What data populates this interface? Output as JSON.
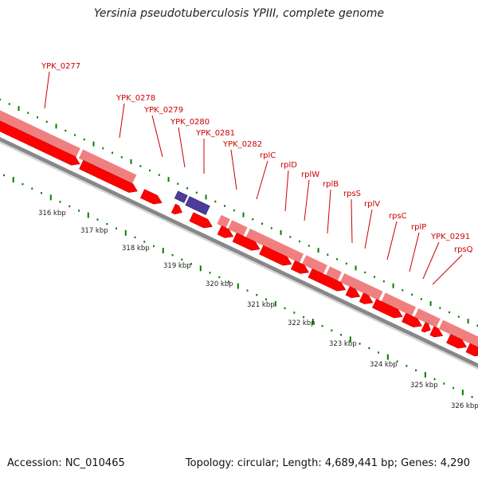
{
  "title": "Yersinia pseudotuberculosis YPIII, complete genome",
  "footer": {
    "accession": "Accession: NC_010465",
    "summary": "Topology: circular; Length: 4,689,441 bp; Genes: 4,290"
  },
  "colors": {
    "cds_forward": "#ff0000",
    "gene_band": "#f08080",
    "rna": "#4b3d99",
    "label": "#cc0000",
    "tick": "#008000",
    "backbone": "#888888"
  },
  "scale_labels": [
    "316 kbp",
    "317 kbp",
    "318 kbp",
    "319 kbp",
    "320 kbp",
    "321 kbp",
    "322 kbp",
    "323 kbp",
    "324 kbp",
    "325 kbp",
    "326 kbp"
  ],
  "gene_labels": [
    "YPK_0277",
    "YPK_0278",
    "YPK_0279",
    "YPK_0280",
    "YPK_0281",
    "YPK_0282",
    "rplC",
    "rplD",
    "rplW",
    "rplB",
    "rpsS",
    "rplV",
    "rpsC",
    "rplP",
    "YPK_0291",
    "rpsQ"
  ]
}
